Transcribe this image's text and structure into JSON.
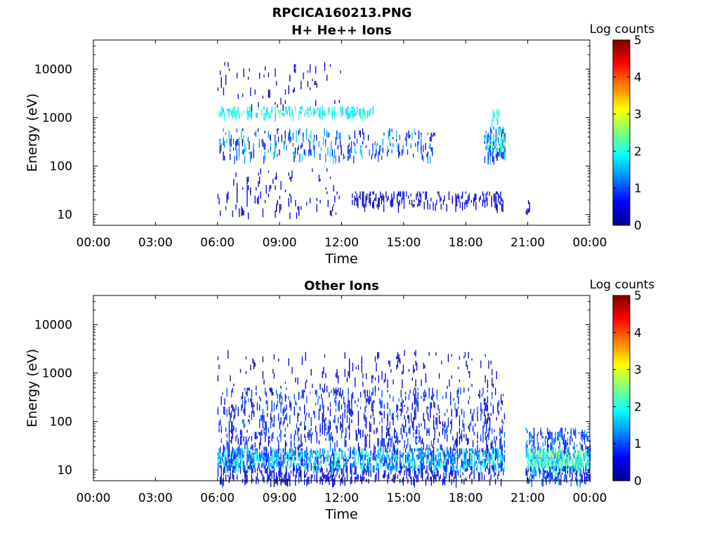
{
  "figure": {
    "filename": "RPCICA160213.PNG"
  },
  "chart_data": [
    {
      "type": "heatmap",
      "title": "H+ He++ Ions",
      "xlabel": "Time",
      "ylabel": "Energy (eV)",
      "xticks": [
        "00:00",
        "03:00",
        "06:00",
        "09:00",
        "12:00",
        "15:00",
        "18:00",
        "21:00",
        "00:00"
      ],
      "xlim_hours": [
        0,
        24
      ],
      "yticks": [
        10,
        100,
        1000,
        10000
      ],
      "ytick_labels": [
        "10",
        "100",
        "1000",
        "10000"
      ],
      "ylim_ev": [
        6,
        40000
      ],
      "y_scale": "log",
      "colorbar": {
        "label": "Log counts",
        "range": [
          0,
          5
        ],
        "ticks": [
          "0",
          "1",
          "2",
          "3",
          "4",
          "5"
        ],
        "colormap": "jet"
      },
      "data_clusters": [
        {
          "t_start": 6.0,
          "t_end": 13.5,
          "e_low": 1200,
          "e_high": 1700,
          "density": 0.6,
          "level": [
            1.5,
            2.3
          ]
        },
        {
          "t_start": 6.1,
          "t_end": 16.5,
          "e_low": 150,
          "e_high": 600,
          "density": 0.2,
          "level": [
            0.2,
            1.8
          ]
        },
        {
          "t_start": 6.0,
          "t_end": 12.0,
          "e_low": 1800,
          "e_high": 14000,
          "density": 0.05,
          "level": [
            0.1,
            0.6
          ]
        },
        {
          "t_start": 12.5,
          "t_end": 19.8,
          "e_low": 15,
          "e_high": 30,
          "density": 0.4,
          "level": [
            0.1,
            0.8
          ]
        },
        {
          "t_start": 6.0,
          "t_end": 12.0,
          "e_low": 10,
          "e_high": 90,
          "density": 0.06,
          "level": [
            0.1,
            0.7
          ]
        },
        {
          "t_start": 18.9,
          "t_end": 19.9,
          "e_low": 150,
          "e_high": 650,
          "density": 0.7,
          "level": [
            0.3,
            2.5
          ]
        },
        {
          "t_start": 19.2,
          "t_end": 19.6,
          "e_low": 900,
          "e_high": 1500,
          "density": 0.5,
          "level": [
            1.4,
            2.4
          ]
        },
        {
          "t_start": 20.9,
          "t_end": 21.1,
          "e_low": 10,
          "e_high": 22,
          "density": 0.5,
          "level": [
            0.2,
            0.6
          ]
        }
      ]
    },
    {
      "type": "heatmap",
      "title": "Other Ions",
      "xlabel": "Time",
      "ylabel": "Energy (eV)",
      "xticks": [
        "00:00",
        "03:00",
        "06:00",
        "09:00",
        "12:00",
        "15:00",
        "18:00",
        "21:00",
        "00:00"
      ],
      "xlim_hours": [
        0,
        24
      ],
      "yticks": [
        10,
        100,
        1000,
        10000
      ],
      "ytick_labels": [
        "10",
        "100",
        "1000",
        "10000"
      ],
      "ylim_ev": [
        6,
        40000
      ],
      "y_scale": "log",
      "colorbar": {
        "label": "Log counts",
        "range": [
          0,
          5
        ],
        "ticks": [
          "0",
          "1",
          "2",
          "3",
          "4",
          "5"
        ],
        "colormap": "jet"
      },
      "data_clusters": [
        {
          "t_start": 6.0,
          "t_end": 19.9,
          "e_low": 12,
          "e_high": 28,
          "density": 0.85,
          "level": [
            0.5,
            2.3
          ]
        },
        {
          "t_start": 6.0,
          "t_end": 19.9,
          "e_low": 6,
          "e_high": 12,
          "density": 0.35,
          "level": [
            0.1,
            0.9
          ]
        },
        {
          "t_start": 6.0,
          "t_end": 19.9,
          "e_low": 28,
          "e_high": 500,
          "density": 0.22,
          "level": [
            0.1,
            1.2
          ]
        },
        {
          "t_start": 6.0,
          "t_end": 19.5,
          "e_low": 500,
          "e_high": 3000,
          "density": 0.05,
          "level": [
            0.1,
            0.6
          ]
        },
        {
          "t_start": 20.9,
          "t_end": 24.0,
          "e_low": 12,
          "e_high": 28,
          "density": 0.95,
          "level": [
            1.2,
            2.8
          ]
        },
        {
          "t_start": 20.9,
          "t_end": 24.0,
          "e_low": 6,
          "e_high": 12,
          "density": 0.6,
          "level": [
            0.3,
            1.6
          ]
        },
        {
          "t_start": 20.9,
          "t_end": 24.0,
          "e_low": 28,
          "e_high": 75,
          "density": 0.45,
          "level": [
            0.3,
            1.5
          ]
        }
      ]
    }
  ]
}
